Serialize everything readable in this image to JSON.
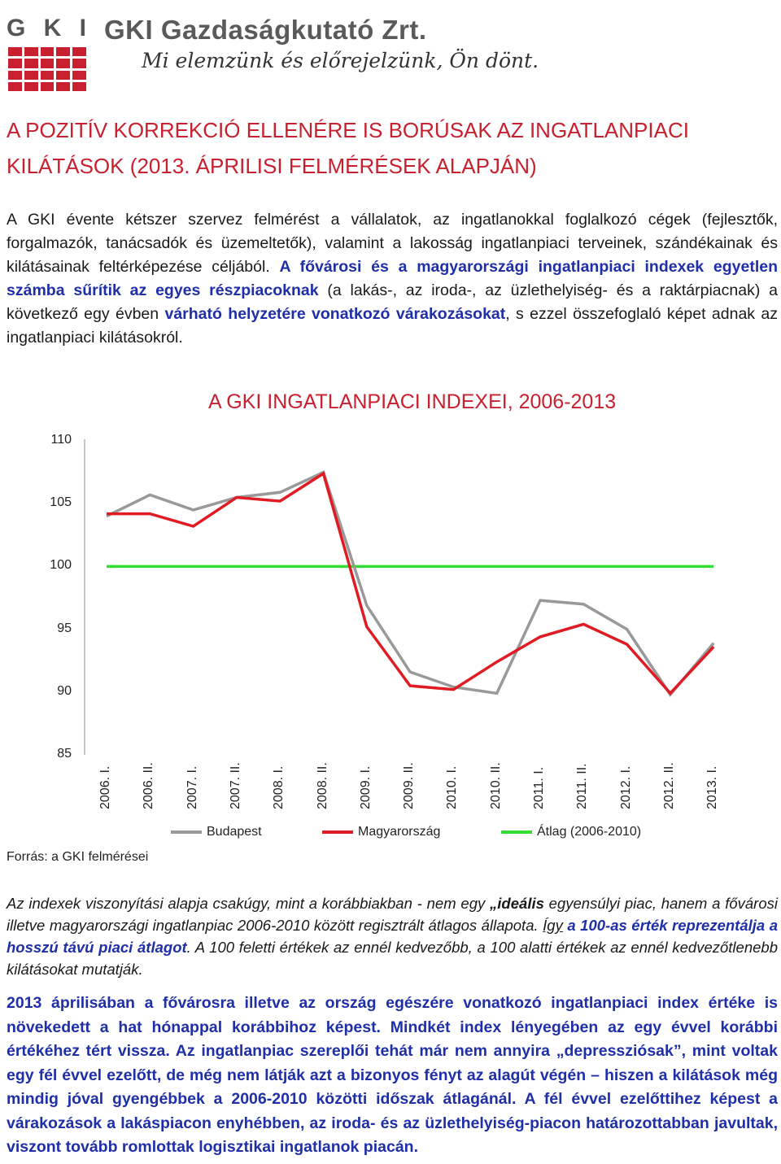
{
  "header": {
    "logo_letters": [
      "G",
      "K",
      "I"
    ],
    "brand": "GKI Gazdaságkutató Zrt.",
    "slogan": "Mi elemzünk és előrejelzünk, Ön dönt."
  },
  "title": "A POZITÍV KORREKCIÓ ELLENÉRE IS BORÚSAK AZ INGATLANPIACI KILÁTÁSOK (2013. ÁPRILISI FELMÉRÉSEK ALAPJÁN)",
  "intro": {
    "p1": "A GKI évente kétszer szervez felmérést a vállalatok, az ingatlanokkal foglalkozó cégek (fejlesztők, forgalmazók, tanácsadók és üzemeltetők), valamint a lakosság ingatlanpiaci terveinek, szándékainak és kilátásainak feltérképezése céljából. ",
    "p2": "A fővárosi és a magyarországi ingatlanpiaci indexek egyetlen számba sűrítik az egyes részpiacoknak",
    "p3": " (a lakás-, az iroda-, az üzlethelyiség- és a raktárpiacnak) a következő egy évben ",
    "p4": "várható helyzetére vonatkozó várakozásokat",
    "p5": ", s ezzel összefoglaló képet adnak az ingatlanpiaci kilátásokról."
  },
  "chart_data": {
    "type": "line",
    "title": "A GKI INGATLANPIACI INDEXEI, 2006-2013",
    "categories": [
      "2006. I.",
      "2006. II.",
      "2007. I.",
      "2007. II.",
      "2008. I.",
      "2008. II.",
      "2009. I.",
      "2009. II.",
      "2010. I.",
      "2010. II.",
      "2011. I.",
      "2011. II.",
      "2012. I.",
      "2012. II.",
      "2013. I."
    ],
    "ylim": [
      85,
      110
    ],
    "yticks": [
      "110",
      "105",
      "100",
      "95",
      "90",
      "85"
    ],
    "series": [
      {
        "name": "Budapest",
        "color": "#999999",
        "values": [
          104.0,
          105.7,
          104.5,
          105.5,
          105.9,
          107.5,
          96.9,
          91.6,
          90.4,
          89.9,
          97.3,
          97.0,
          95.0,
          89.8,
          93.9
        ]
      },
      {
        "name": "Magyarország",
        "color": "#e01b23",
        "values": [
          104.2,
          104.2,
          103.2,
          105.5,
          105.2,
          107.4,
          95.2,
          90.5,
          90.2,
          92.4,
          94.4,
          95.4,
          93.8,
          89.9,
          93.6
        ]
      },
      {
        "name": "Átlag (2006-2010)",
        "color": "#33dd33",
        "values": [
          100,
          100,
          100,
          100,
          100,
          100,
          100,
          100,
          100,
          100,
          100,
          100,
          100,
          100,
          100
        ]
      }
    ],
    "grid": false,
    "legend": "bottom"
  },
  "source": "Forrás: a GKI felmérései",
  "explain": {
    "a": "Az indexek viszonyítási alapja csakúgy, mint a korábbiakban - nem egy ",
    "b": "„ideális",
    "c": " egyensúlyi piac, hanem a fővárosi illetve magyarországi ingatlanpiac 2006-2010 között regisztrált átlagos állapota. ",
    "d": "Így",
    "e": " ",
    "f": "a 100-as érték reprezentálja a hosszú távú piaci átlagot",
    "g": ". A 100 feletti értékek az ennél kedvezőbb, a 100 alatti értékek az ennél kedvezőtlenebb kilátásokat mutatják."
  },
  "conclusion": "2013 áprilisában a fővárosra illetve az ország egészére vonatkozó ingatlanpiaci index értéke is növekedett a hat hónappal korábbihoz képest. Mindkét index lényegében az egy évvel korábbi értékéhez tért vissza. Az ingatlanpiac szereplői tehát már nem annyira „depressziósak”, mint voltak egy fél évvel ezelőtt, de még nem látják azt a bizonyos fényt az alagút végén – hiszen a kilátások még mindig jóval gyengébbek a 2006-2010 közötti időszak átlagánál. A fél évvel ezelőttihez képest a várakozások a lakáspiacon enyhébben, az iroda- és az üzlethelyiség-piacon határozottabban javultak, viszont tovább romlottak logisztikai ingatlanok piacán."
}
